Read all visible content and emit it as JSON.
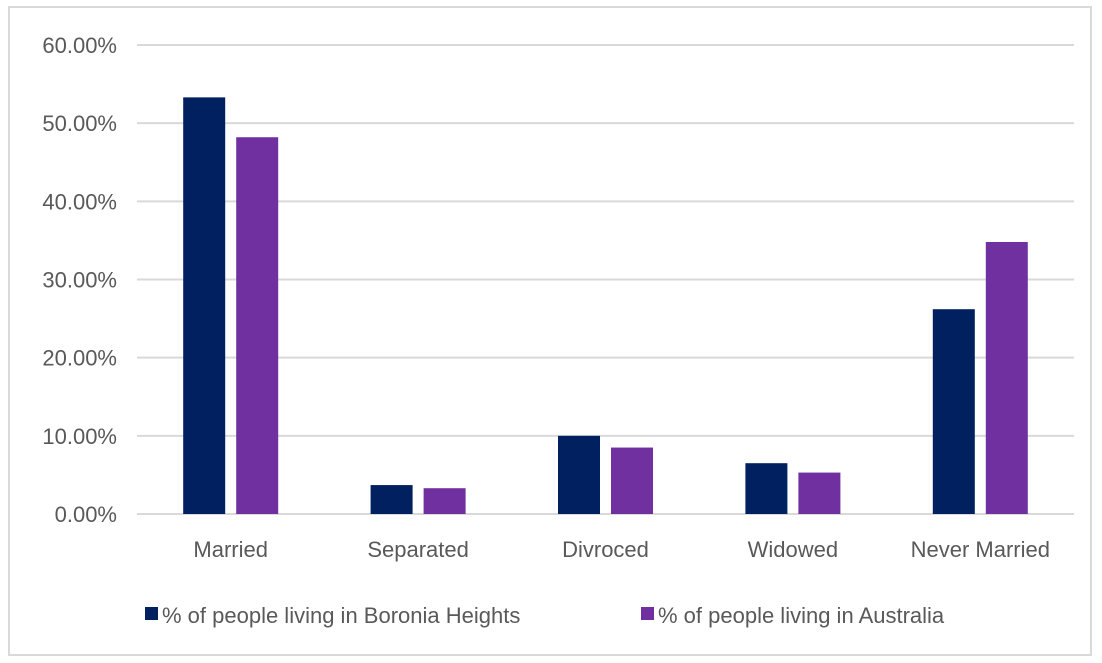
{
  "chart_data": {
    "type": "bar",
    "categories": [
      "Married",
      "Separated",
      "Divroced",
      "Widowed",
      "Never Married"
    ],
    "series": [
      {
        "name": "% of people living in Boronia Heights",
        "values": [
          53.3,
          3.7,
          10.0,
          6.5,
          26.2
        ],
        "color": "#002060"
      },
      {
        "name": "% of people living in Australia",
        "values": [
          48.2,
          3.3,
          8.5,
          5.3,
          34.8
        ],
        "color": "#7030a0"
      }
    ],
    "yticks": [
      "0.00%",
      "10.00%",
      "20.00%",
      "30.00%",
      "40.00%",
      "50.00%",
      "60.00%"
    ],
    "ylim": [
      0,
      60
    ],
    "grid": true,
    "legend_position": "bottom",
    "title": "",
    "xlabel": "",
    "ylabel": ""
  }
}
